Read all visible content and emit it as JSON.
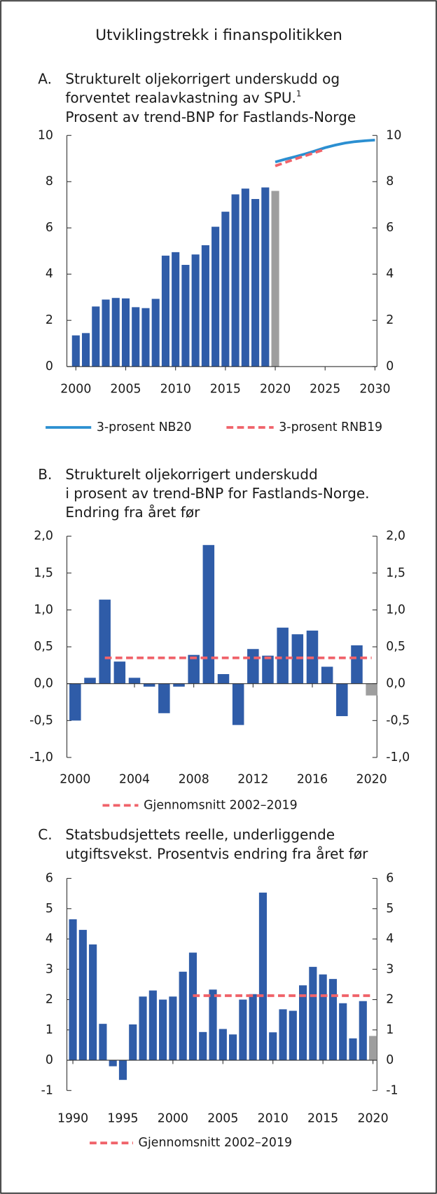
{
  "title": "Utviklingstrekk i finanspolitikken",
  "chart_data": [
    {
      "type": "bar",
      "label": "A.",
      "title_lines": [
        "Strukturelt oljekorrigert underskudd og",
        "forventet realavkastning av SPU.",
        "Prosent av trend-BNP for Fastlands-Norge"
      ],
      "title_note": "1",
      "x": [
        2000,
        2001,
        2002,
        2003,
        2004,
        2005,
        2006,
        2007,
        2008,
        2009,
        2010,
        2011,
        2012,
        2013,
        2014,
        2015,
        2016,
        2017,
        2018,
        2019,
        2020
      ],
      "values": [
        1.35,
        1.45,
        2.6,
        2.9,
        2.97,
        2.95,
        2.57,
        2.53,
        2.93,
        4.8,
        4.95,
        4.4,
        4.85,
        5.25,
        6.05,
        6.7,
        7.45,
        7.7,
        7.25,
        7.75,
        7.6
      ],
      "color": "#2f5ca8",
      "last_color": "#9e9e9e",
      "lines": [
        {
          "name": "3-prosent NB20",
          "color": "#2b8fd1",
          "dashed": false,
          "x": [
            2020,
            2021,
            2022,
            2023,
            2024,
            2025,
            2026,
            2027,
            2028,
            2029,
            2030
          ],
          "values": [
            8.85,
            8.97,
            9.08,
            9.2,
            9.33,
            9.47,
            9.58,
            9.67,
            9.73,
            9.77,
            9.8
          ]
        },
        {
          "name": "3-prosent RNB19",
          "color": "#f0636a",
          "dashed": true,
          "x": [
            2020,
            2021,
            2022,
            2023,
            2024,
            2025
          ],
          "values": [
            8.68,
            8.83,
            8.98,
            9.12,
            9.26,
            9.4
          ]
        }
      ],
      "xlim": [
        1999.1,
        2030.2
      ],
      "xticks": [
        2000,
        2005,
        2010,
        2015,
        2020,
        2025,
        2030
      ],
      "ylim": [
        0,
        10
      ],
      "yticks": [
        0,
        2,
        4,
        6,
        8,
        10
      ]
    },
    {
      "type": "bar",
      "label": "B.",
      "title_lines": [
        "Strukturelt oljekorrigert underskudd",
        "i prosent av trend-BNP for Fastlands-Norge.",
        "Endring fra året før"
      ],
      "x": [
        2000,
        2001,
        2002,
        2003,
        2004,
        2005,
        2006,
        2007,
        2008,
        2009,
        2010,
        2011,
        2012,
        2013,
        2014,
        2015,
        2016,
        2017,
        2018,
        2019,
        2020
      ],
      "values": [
        -0.5,
        0.08,
        1.14,
        0.3,
        0.08,
        -0.04,
        -0.4,
        -0.04,
        0.39,
        1.88,
        0.13,
        -0.56,
        0.47,
        0.38,
        0.76,
        0.67,
        0.72,
        0.23,
        -0.44,
        0.52,
        -0.16
      ],
      "color": "#2f5ca8",
      "last_color": "#9e9e9e",
      "lines": [
        {
          "name": "Gjennomsnitt 2002–2019",
          "color": "#f0636a",
          "dashed": true,
          "x": [
            2002,
            2020
          ],
          "values": [
            0.35,
            0.35
          ]
        }
      ],
      "xlim": [
        1999.44,
        2020.36
      ],
      "xticks": [
        2000,
        2004,
        2008,
        2012,
        2016,
        2020
      ],
      "ylim": [
        -1,
        2
      ],
      "yticks": [
        {
          "value": -1,
          "label": "-1,0"
        },
        {
          "value": -0.5,
          "label": "-0,5"
        },
        {
          "value": 0,
          "label": "0,0"
        },
        {
          "value": 0.5,
          "label": "0,5"
        },
        {
          "value": 1,
          "label": "1,0"
        },
        {
          "value": 1.5,
          "label": "1,5"
        },
        {
          "value": 2,
          "label": "2,0"
        }
      ]
    },
    {
      "type": "bar",
      "label": "C.",
      "title_lines": [
        "Statsbudsjettets reelle, underliggende",
        "utgiftsvekst. Prosentvis endring fra året før"
      ],
      "x": [
        1990,
        1991,
        1992,
        1993,
        1994,
        1995,
        1996,
        1997,
        1998,
        1999,
        2000,
        2001,
        2002,
        2003,
        2004,
        2005,
        2006,
        2007,
        2008,
        2009,
        2010,
        2011,
        2012,
        2013,
        2014,
        2015,
        2016,
        2017,
        2018,
        2019,
        2020
      ],
      "values": [
        4.65,
        4.3,
        3.82,
        1.2,
        -0.2,
        -0.65,
        1.18,
        2.1,
        2.3,
        2.0,
        2.1,
        2.92,
        3.55,
        0.93,
        2.33,
        1.03,
        0.85,
        2.0,
        2.18,
        5.53,
        0.92,
        1.68,
        1.63,
        2.47,
        3.08,
        2.83,
        2.68,
        1.88,
        0.72,
        1.95,
        0.8
      ],
      "color": "#2f5ca8",
      "last_color": "#9e9e9e",
      "lines": [
        {
          "name": "Gjennomsnitt 2002–2019",
          "color": "#f0636a",
          "dashed": true,
          "x": [
            2002,
            2020
          ],
          "values": [
            2.13,
            2.13
          ]
        }
      ],
      "xlim": [
        1989.4,
        2020.4
      ],
      "xticks": [
        1990,
        1995,
        2000,
        2005,
        2010,
        2015,
        2020
      ],
      "ylim": [
        -1,
        6
      ],
      "yticks": [
        -1,
        0,
        1,
        2,
        3,
        4,
        5,
        6
      ]
    }
  ]
}
